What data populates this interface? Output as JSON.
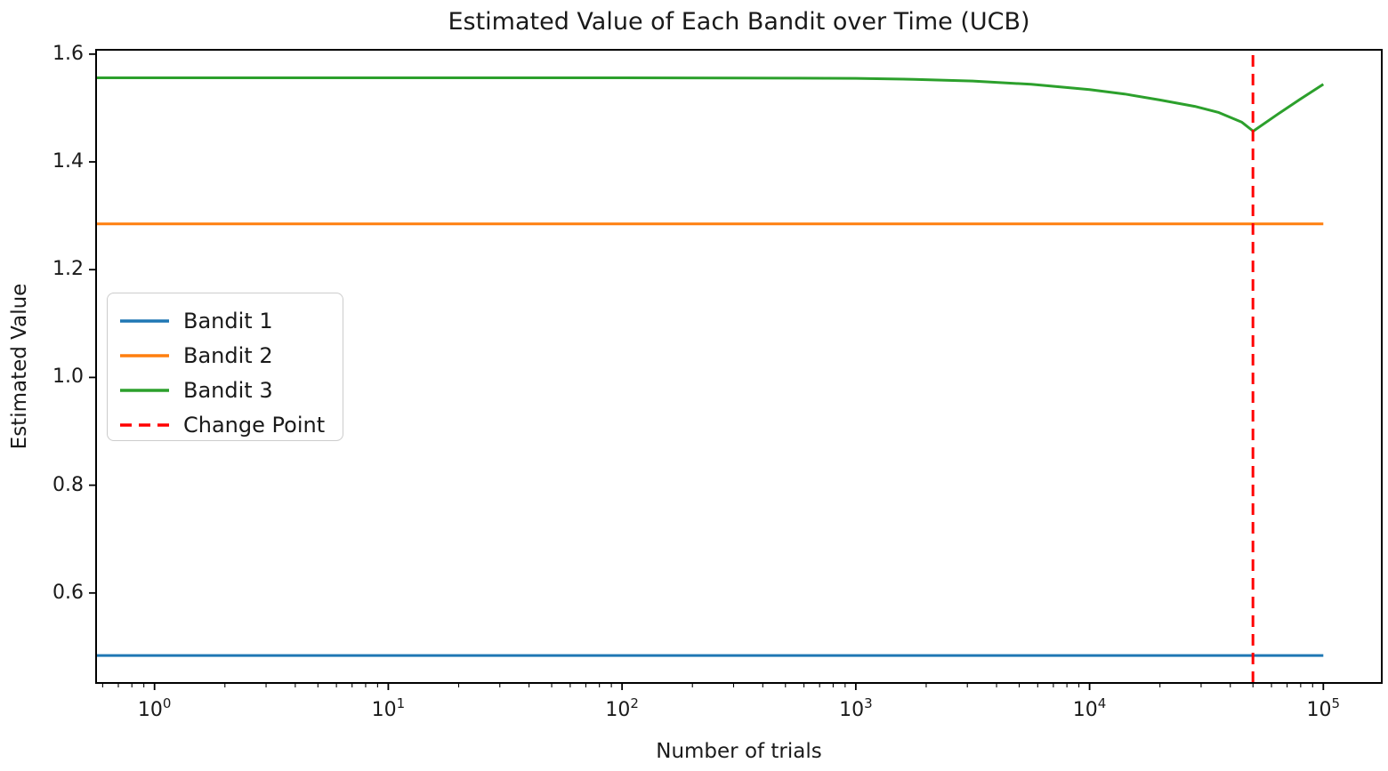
{
  "figure": {
    "title": "Estimated Value of Each Bandit over Time (UCB)",
    "xlabel": "Number of trials",
    "ylabel": "Estimated Value",
    "background_color": "#ffffff",
    "text_color": "#1a1a1a"
  },
  "chart_data": {
    "type": "line",
    "title": "Estimated Value of Each Bandit over Time (UCB)",
    "xlabel": "Number of trials",
    "ylabel": "Estimated Value",
    "x_scale": "log10",
    "xlim_log10": [
      -0.25,
      5.25
    ],
    "ylim": [
      0.433,
      1.608
    ],
    "grid": false,
    "x_ticks": [
      {
        "log10": 0,
        "base": "10",
        "exp": "0"
      },
      {
        "log10": 1,
        "base": "10",
        "exp": "1"
      },
      {
        "log10": 2,
        "base": "10",
        "exp": "2"
      },
      {
        "log10": 3,
        "base": "10",
        "exp": "3"
      },
      {
        "log10": 4,
        "base": "10",
        "exp": "4"
      },
      {
        "log10": 5,
        "base": "10",
        "exp": "5"
      }
    ],
    "y_ticks": [
      {
        "value": 0.6,
        "label": "0.6"
      },
      {
        "value": 0.8,
        "label": "0.8"
      },
      {
        "value": 1.0,
        "label": "1.0"
      },
      {
        "value": 1.2,
        "label": "1.2"
      },
      {
        "value": 1.4,
        "label": "1.4"
      },
      {
        "value": 1.6,
        "label": "1.6"
      }
    ],
    "change_point_trials": 50000,
    "series": [
      {
        "name": "Bandit 1",
        "color": "#1f77b4",
        "dash": null,
        "points_log10x_y": [
          [
            -0.25,
            0.484
          ],
          [
            5,
            0.484
          ]
        ]
      },
      {
        "name": "Bandit 2",
        "color": "#ff7f0e",
        "dash": null,
        "points_log10x_y": [
          [
            -0.25,
            1.285
          ],
          [
            5,
            1.285
          ]
        ]
      },
      {
        "name": "Bandit 3",
        "color": "#2ca02c",
        "dash": null,
        "points_log10x_y": [
          [
            -0.25,
            1.556
          ],
          [
            0,
            1.556
          ],
          [
            0.5,
            1.556
          ],
          [
            1,
            1.556
          ],
          [
            1.5,
            1.556
          ],
          [
            2,
            1.556
          ],
          [
            2.5,
            1.5555
          ],
          [
            2.75,
            1.5553
          ],
          [
            3,
            1.555
          ],
          [
            3.25,
            1.5532
          ],
          [
            3.5,
            1.55
          ],
          [
            3.75,
            1.544
          ],
          [
            4,
            1.534
          ],
          [
            4.15,
            1.526
          ],
          [
            4.3,
            1.515
          ],
          [
            4.45,
            1.503
          ],
          [
            4.55,
            1.492
          ],
          [
            4.65,
            1.474
          ],
          [
            4.7,
            1.457
          ],
          [
            4.8,
            1.487
          ],
          [
            4.9,
            1.516
          ],
          [
            5,
            1.544
          ]
        ]
      },
      {
        "name": "Change Point",
        "color": "#ff0000",
        "dash": "13 8",
        "vline": true,
        "points_log10x_y": [
          [
            4.699,
            0.433
          ],
          [
            4.699,
            1.608
          ]
        ]
      }
    ],
    "legend": {
      "position": "upper left",
      "items": [
        {
          "label": "Bandit 1",
          "color": "#1f77b4",
          "dash": null
        },
        {
          "label": "Bandit 2",
          "color": "#ff7f0e",
          "dash": null
        },
        {
          "label": "Bandit 3",
          "color": "#2ca02c",
          "dash": null
        },
        {
          "label": "Change Point",
          "color": "#ff0000",
          "dash": "13 8"
        }
      ]
    }
  }
}
